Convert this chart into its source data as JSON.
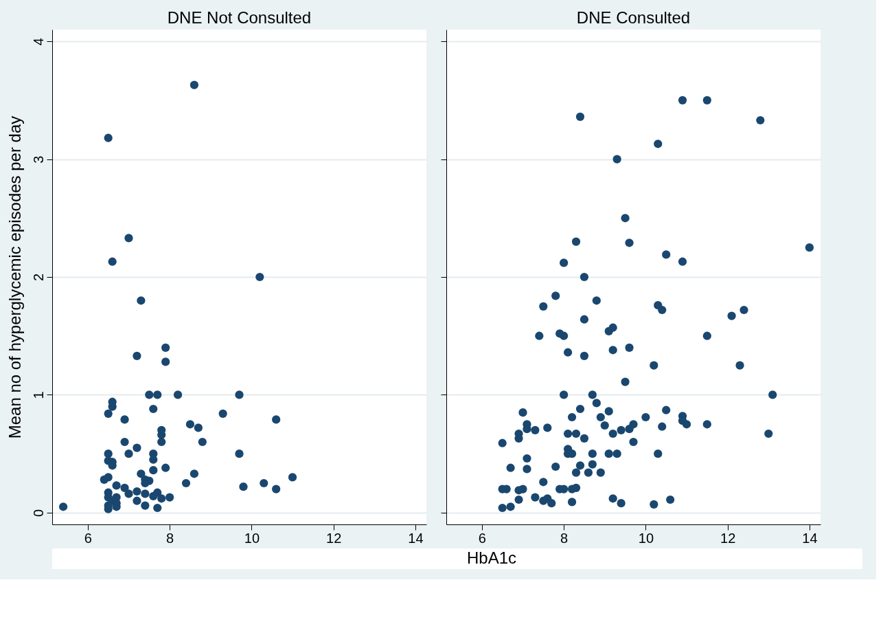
{
  "chart_data": [
    {
      "type": "scatter",
      "title": "DNE Not Consulted",
      "xlabel": "HbA1c",
      "ylabel": "Mean no of hyperglycemic episodes per day",
      "xlim": [
        5.13,
        14.27
      ],
      "ylim": [
        -0.1,
        4.1
      ],
      "xticks": [
        6,
        8,
        10,
        12,
        14
      ],
      "yticks": [
        0,
        1,
        2,
        3,
        4
      ],
      "grid": "y",
      "marker": "circle",
      "series": [
        {
          "color": "#1a476f",
          "x": [
            5.4,
            6.5,
            6.6,
            7.0,
            7.3,
            7.2,
            7.9,
            7.9,
            8.6,
            10.2,
            7.5,
            7.7,
            8.2,
            9.7,
            7.6,
            6.6,
            6.6,
            6.5,
            6.9,
            10.6,
            9.3,
            8.5,
            8.7,
            7.8,
            7.8,
            7.8,
            8.8,
            6.9,
            7.2,
            7.0,
            7.6,
            9.7,
            6.5,
            6.5,
            6.6,
            7.6,
            7.9,
            6.6,
            7.6,
            7.3,
            8.6,
            6.5,
            6.4,
            11.0,
            7.4,
            7.5,
            7.4,
            8.4,
            10.3,
            6.7,
            6.9,
            9.8,
            10.6,
            6.5,
            7.2,
            7.7,
            7.0,
            7.4,
            8.0,
            7.6,
            6.5,
            6.7,
            7.8,
            7.2,
            6.6,
            6.7,
            6.5,
            7.4,
            7.7,
            6.5,
            6.7
          ],
          "values": [
            0.05,
            3.18,
            2.13,
            2.33,
            1.8,
            1.33,
            1.4,
            1.28,
            3.63,
            2.0,
            1.0,
            1.0,
            1.0,
            1.0,
            0.88,
            0.94,
            0.9,
            0.84,
            0.79,
            0.79,
            0.84,
            0.75,
            0.72,
            0.7,
            0.66,
            0.6,
            0.6,
            0.6,
            0.55,
            0.5,
            0.5,
            0.5,
            0.5,
            0.44,
            0.43,
            0.45,
            0.38,
            0.4,
            0.36,
            0.33,
            0.33,
            0.3,
            0.28,
            0.3,
            0.28,
            0.27,
            0.25,
            0.25,
            0.25,
            0.23,
            0.21,
            0.22,
            0.2,
            0.17,
            0.18,
            0.17,
            0.16,
            0.16,
            0.13,
            0.14,
            0.13,
            0.13,
            0.12,
            0.1,
            0.1,
            0.08,
            0.06,
            0.06,
            0.04,
            0.03,
            0.05
          ]
        }
      ]
    },
    {
      "type": "scatter",
      "title": "DNE Consulted",
      "xlim": [
        5.13,
        14.27
      ],
      "ylim": [
        -0.1,
        4.1
      ],
      "xticks": [
        6,
        8,
        10,
        12,
        14
      ],
      "yticks": [
        0,
        1,
        2,
        3,
        4
      ],
      "grid": "y",
      "marker": "circle",
      "tick_labels": "x",
      "series": [
        {
          "color": "#1a476f",
          "x": [
            8.4,
            10.9,
            11.5,
            12.8,
            9.3,
            10.3,
            9.5,
            9.6,
            8.3,
            8.0,
            10.5,
            10.9,
            14.0,
            8.5,
            7.8,
            7.5,
            8.8,
            10.3,
            10.4,
            12.4,
            12.1,
            8.5,
            9.2,
            9.1,
            7.9,
            8.0,
            7.4,
            9.6,
            11.5,
            9.2,
            8.1,
            8.5,
            10.2,
            12.3,
            9.5,
            13.1,
            8.0,
            8.7,
            8.8,
            8.4,
            7.0,
            9.1,
            10.5,
            10.0,
            8.2,
            8.9,
            10.9,
            10.9,
            11.0,
            10.4,
            11.5,
            10.3,
            13.0,
            10.6,
            10.2,
            7.1,
            7.1,
            7.3,
            7.6,
            6.9,
            6.9,
            9.0,
            9.2,
            9.4,
            9.6,
            9.7,
            9.7,
            6.5,
            8.1,
            8.3,
            8.5,
            8.1,
            8.1,
            8.2,
            8.7,
            9.1,
            9.3,
            7.1,
            6.7,
            7.1,
            7.8,
            8.4,
            8.3,
            8.7,
            8.6,
            8.9,
            7.5,
            6.5,
            6.6,
            6.9,
            7.0,
            6.9,
            7.9,
            8.0,
            8.2,
            8.3,
            7.3,
            7.5,
            7.6,
            7.7,
            8.2,
            9.2,
            9.4,
            6.5,
            6.7
          ],
          "values": [
            3.36,
            3.5,
            3.5,
            3.33,
            3.0,
            3.13,
            2.5,
            2.29,
            2.3,
            2.12,
            2.19,
            2.13,
            2.25,
            2.0,
            1.84,
            1.75,
            1.8,
            1.76,
            1.72,
            1.72,
            1.67,
            1.64,
            1.57,
            1.54,
            1.52,
            1.5,
            1.5,
            1.4,
            1.5,
            1.38,
            1.36,
            1.33,
            1.25,
            1.25,
            1.11,
            1.0,
            1.0,
            1.0,
            0.93,
            0.88,
            0.85,
            0.86,
            0.87,
            0.81,
            0.81,
            0.81,
            0.82,
            0.78,
            0.75,
            0.73,
            0.75,
            0.5,
            0.67,
            0.11,
            0.07,
            0.75,
            0.71,
            0.7,
            0.72,
            0.67,
            0.63,
            0.74,
            0.67,
            0.7,
            0.71,
            0.75,
            0.6,
            0.59,
            0.67,
            0.67,
            0.63,
            0.54,
            0.5,
            0.5,
            0.5,
            0.5,
            0.5,
            0.46,
            0.38,
            0.37,
            0.39,
            0.4,
            0.34,
            0.41,
            0.34,
            0.34,
            0.26,
            0.2,
            0.2,
            0.19,
            0.2,
            0.11,
            0.2,
            0.2,
            0.2,
            0.21,
            0.13,
            0.1,
            0.12,
            0.08,
            0.09,
            0.12,
            0.08,
            0.04,
            0.05
          ]
        }
      ]
    }
  ]
}
